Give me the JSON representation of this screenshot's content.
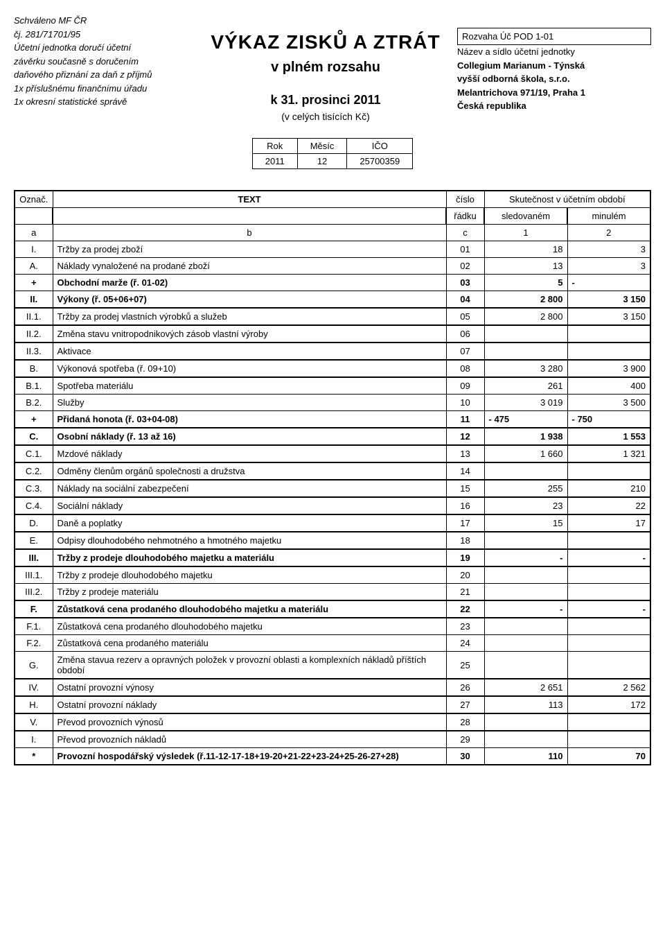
{
  "header": {
    "left": {
      "l1": "Schváleno MF ČR",
      "l2": "čj. 281/71701/95",
      "l3": "Účetní jednotka doručí účetní",
      "l4": "závěrku současně s doručením",
      "l5": "daňového přiznání za daň z příjmů",
      "l6": "1x příslušnému finančnímu úřadu",
      "l7": "1x okresní statistické správě"
    },
    "center": {
      "title": "VÝKAZ  ZISKŮ  A  ZTRÁT",
      "sub1": "v plném rozsahu",
      "sub2": "k  31. prosinci   2011",
      "sub3": "(v celých tisících Kč)"
    },
    "right": {
      "box": "Rozvaha Úč POD 1-01",
      "l1": "Název a sídlo účetní jednotky",
      "l2": "Collegium Marianum - Týnská",
      "l3": "vyšší odborná škola, s.r.o.",
      "l4": "Melantrichova 971/19, Praha 1",
      "l5": "Česká republika"
    }
  },
  "meta": {
    "h1": "Rok",
    "h2": "Měsíc",
    "h3": "IČO",
    "v1": "2011",
    "v2": "12",
    "v3": "25700359"
  },
  "thead": {
    "oznac": "Označ.",
    "text": "TEXT",
    "cislo": "číslo",
    "skut": "Skutečnost v účetním období",
    "radku": "řádku",
    "sled": "sledovaném",
    "min": "minulém",
    "a": "a",
    "b": "b",
    "c": "c",
    "one": "1",
    "two": "2"
  },
  "rows": [
    {
      "m": "I.",
      "t": "Tržby za prodej zboží",
      "n": "01",
      "v1": "18",
      "v2": "3",
      "bold": false
    },
    {
      "m": "A.",
      "t": "Náklady vynaložené na prodané zboží",
      "n": "02",
      "v1": "13",
      "v2": "3",
      "bold": false
    },
    {
      "m": "+",
      "t": "Obchodní marže  (ř. 01-02)",
      "n": "03",
      "v1": "5",
      "v2": "-",
      "bold": true,
      "v2left": true
    },
    {
      "m": "II.",
      "t": "Výkony  (ř. 05+06+07)",
      "n": "04",
      "v1": "2 800",
      "v2": "3 150",
      "bold": true
    },
    {
      "m": "II.1.",
      "t": "Tržby za prodej vlastních výrobků a služeb",
      "n": "05",
      "v1": "2 800",
      "v2": "3 150",
      "thick": true
    },
    {
      "m": "II.2.",
      "t": "Změna stavu vnitropodnikových zásob vlastní výroby",
      "n": "06",
      "v1": "",
      "v2": "",
      "thick": true
    },
    {
      "m": "II.3.",
      "t": "Aktivace",
      "n": "07",
      "v1": "",
      "v2": "",
      "thick": true
    },
    {
      "m": "B.",
      "t": "Výkonová spotřeba   (ř. 09+10)",
      "n": "08",
      "v1": "3 280",
      "v2": "3 900",
      "thick": true
    },
    {
      "m": "B.1.",
      "t": "Spotřeba materiálu",
      "n": "09",
      "v1": "261",
      "v2": "400",
      "thick": true
    },
    {
      "m": "B.2.",
      "t": "Služby",
      "n": "10",
      "v1": "3 019",
      "v2": "3 500"
    },
    {
      "m": "+",
      "t": "Přidaná honota   (ř. 03+04-08)",
      "n": "11",
      "v1": "-           475",
      "v2": "-           750",
      "bold": true,
      "v1left": true,
      "v2left": true
    },
    {
      "m": "C.",
      "t": "Osobní náklady   (ř. 13 až 16)",
      "n": "12",
      "v1": "1 938",
      "v2": "1 553",
      "bold": true,
      "thick": true
    },
    {
      "m": "C.1.",
      "t": "Mzdové náklady",
      "n": "13",
      "v1": "1 660",
      "v2": "1 321",
      "thick": true
    },
    {
      "m": "C.2.",
      "t": "Odměny členům orgánů společnosti a družstva",
      "n": "14",
      "v1": "",
      "v2": "",
      "thick": true
    },
    {
      "m": "C.3.",
      "t": "Náklady na sociální zabezpečení",
      "n": "15",
      "v1": "255",
      "v2": "210",
      "thick": true
    },
    {
      "m": "C.4.",
      "t": "Sociální náklady",
      "n": "16",
      "v1": "23",
      "v2": "22",
      "thick": true
    },
    {
      "m": "D.",
      "t": "Daně a poplatky",
      "n": "17",
      "v1": "15",
      "v2": "17",
      "thick": true
    },
    {
      "m": "E.",
      "t": "Odpisy dlouhodobého nehmotného a hmotného majetku",
      "n": "18",
      "v1": "",
      "v2": "",
      "thick": true
    },
    {
      "m": "III.",
      "t": "Tržby z prodeje dlouhodobého majetku a materiálu",
      "n": "19",
      "v1": "-",
      "v2": "-",
      "bold": true,
      "thick": true
    },
    {
      "m": "III.1.",
      "t": "Tržby z prodeje dlouhodobého majetku",
      "n": "20",
      "v1": "",
      "v2": "",
      "thick": true
    },
    {
      "m": "III.2.",
      "t": "Tržby z prodeje materiálu",
      "n": "21",
      "v1": "",
      "v2": ""
    },
    {
      "m": "F.",
      "t": "Zůstatková cena prodaného dlouhodobého majetku a materiálu",
      "n": "22",
      "v1": "-",
      "v2": "-",
      "bold": true,
      "thick": true
    },
    {
      "m": "F.1.",
      "t": "Zůstatková cena prodaného dlouhodobého majetku",
      "n": "23",
      "v1": "",
      "v2": "",
      "thick": true
    },
    {
      "m": "F.2.",
      "t": "Zůstatková cena prodaného materiálu",
      "n": "24",
      "v1": "",
      "v2": ""
    },
    {
      "m": "G.",
      "t": "Změna stavua rezerv a opravných položek v provozní oblasti a komplexních nákladů příštích období",
      "n": "25",
      "v1": "",
      "v2": "",
      "thick": false
    },
    {
      "m": "IV.",
      "t": "Ostatní provozní výnosy",
      "n": "26",
      "v1": "2 651",
      "v2": "2 562",
      "thick": true
    },
    {
      "m": "H.",
      "t": "Ostatní provozní náklady",
      "n": "27",
      "v1": "113",
      "v2": "172",
      "thick": true
    },
    {
      "m": "V.",
      "t": "Převod provozních výnosů",
      "n": "28",
      "v1": "",
      "v2": "",
      "thick": true
    },
    {
      "m": "I.",
      "t": "Převod provozních nákladů",
      "n": "29",
      "v1": "",
      "v2": "",
      "thick": true
    },
    {
      "m": "*",
      "t": "Provozní hospodářský výsledek                                         (ř.11-12-17-18+19-20+21-22+23-24+25-26-27+28)",
      "n": "30",
      "v1": "110",
      "v2": "70",
      "bold": true
    }
  ]
}
